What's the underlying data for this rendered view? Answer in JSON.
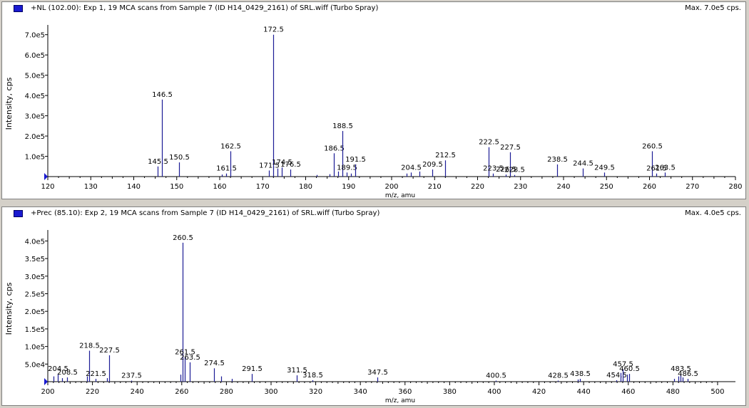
{
  "panels": [
    {
      "title": "+NL (102.00): Exp 1, 19 MCA scans from Sample 7 (ID H14_0429_2161) of SRL.wiff (Turbo Spray)",
      "max_label": "Max. 7.0e5 cps.",
      "legend_color": "#1a1ad0"
    },
    {
      "title": "+Prec (85.10): Exp 2, 19 MCA scans from Sample 7 (ID H14_0429_2161) of SRL.wiff (Turbo Spray)",
      "max_label": "Max. 4.0e5 cps.",
      "legend_color": "#1a1ad0"
    }
  ],
  "chart_data": [
    {
      "type": "bar",
      "title": "+NL (102.00): Exp 1, 19 MCA scans from Sample 7 (ID H14_0429_2161) of SRL.wiff (Turbo Spray)",
      "xlabel": "m/z, amu",
      "ylabel": "Intensity, cps",
      "xlim": [
        120,
        280
      ],
      "ylim": [
        0,
        720000
      ],
      "x_ticks": [
        120,
        130,
        140,
        150,
        160,
        170,
        180,
        190,
        200,
        210,
        220,
        230,
        240,
        250,
        260,
        270,
        280
      ],
      "y_ticks": [
        100000,
        200000,
        300000,
        400000,
        500000,
        600000,
        700000
      ],
      "y_tick_labels": [
        "1.0e5",
        "2.0e5",
        "3.0e5",
        "4.0e5",
        "5.0e5",
        "6.0e5",
        "7.0e5"
      ],
      "peak_color": "#1c1c96",
      "peaks": [
        {
          "x": 145.5,
          "y": 50000,
          "label": "145.5"
        },
        {
          "x": 146.5,
          "y": 380000,
          "label": "146.5"
        },
        {
          "x": 150.5,
          "y": 70000,
          "label": "150.5"
        },
        {
          "x": 160.5,
          "y": 10000,
          "label": ""
        },
        {
          "x": 161.5,
          "y": 15000,
          "label": "161.5"
        },
        {
          "x": 162.5,
          "y": 125000,
          "label": "162.5"
        },
        {
          "x": 171.5,
          "y": 30000,
          "label": "171.5"
        },
        {
          "x": 172.5,
          "y": 700000,
          "label": "172.5"
        },
        {
          "x": 173.5,
          "y": 40000,
          "label": ""
        },
        {
          "x": 174.5,
          "y": 45000,
          "label": "174.5"
        },
        {
          "x": 176.5,
          "y": 35000,
          "label": "176.5"
        },
        {
          "x": 182.5,
          "y": 8000,
          "label": ""
        },
        {
          "x": 185.5,
          "y": 12000,
          "label": ""
        },
        {
          "x": 186.5,
          "y": 115000,
          "label": "186.5"
        },
        {
          "x": 187.5,
          "y": 25000,
          "label": ""
        },
        {
          "x": 188.5,
          "y": 225000,
          "label": "188.5"
        },
        {
          "x": 189.5,
          "y": 20000,
          "label": "189.5"
        },
        {
          "x": 190.5,
          "y": 15000,
          "label": ""
        },
        {
          "x": 191.5,
          "y": 60000,
          "label": "191.5"
        },
        {
          "x": 203.5,
          "y": 15000,
          "label": ""
        },
        {
          "x": 204.5,
          "y": 20000,
          "label": "204.5"
        },
        {
          "x": 206.5,
          "y": 25000,
          "label": ""
        },
        {
          "x": 209.5,
          "y": 35000,
          "label": "209.5"
        },
        {
          "x": 212.5,
          "y": 80000,
          "label": "212.5"
        },
        {
          "x": 222.5,
          "y": 145000,
          "label": "222.5"
        },
        {
          "x": 223.5,
          "y": 15000,
          "label": "223.5"
        },
        {
          "x": 226.5,
          "y": 10000,
          "label": "226.5"
        },
        {
          "x": 227.5,
          "y": 120000,
          "label": "227.5"
        },
        {
          "x": 228.5,
          "y": 8000,
          "label": "228.5"
        },
        {
          "x": 238.5,
          "y": 60000,
          "label": "238.5"
        },
        {
          "x": 244.5,
          "y": 40000,
          "label": "244.5"
        },
        {
          "x": 249.5,
          "y": 20000,
          "label": "249.5"
        },
        {
          "x": 260.5,
          "y": 125000,
          "label": "260.5"
        },
        {
          "x": 261.5,
          "y": 15000,
          "label": "261.5"
        },
        {
          "x": 263.5,
          "y": 20000,
          "label": "263.5"
        }
      ]
    },
    {
      "type": "bar",
      "title": "+Prec (85.10): Exp 2, 19 MCA scans from Sample 7 (ID H14_0429_2161) of SRL.wiff (Turbo Spray)",
      "xlabel": "m/z, amu",
      "ylabel": "Intensity, cps",
      "xlim": [
        200,
        508
      ],
      "ylim": [
        0,
        415000
      ],
      "x_ticks": [
        200,
        220,
        240,
        260,
        280,
        300,
        320,
        340,
        360,
        380,
        400,
        420,
        440,
        460,
        480,
        500
      ],
      "y_ticks": [
        50000,
        100000,
        150000,
        200000,
        250000,
        300000,
        350000,
        400000
      ],
      "y_tick_labels": [
        "5.0e4",
        "1.0e5",
        "1.5e5",
        "2.0e5",
        "2.5e5",
        "3.0e5",
        "3.5e5",
        "4.0e5"
      ],
      "peak_color": "#1c1c96",
      "peaks": [
        {
          "x": 202.5,
          "y": 15000,
          "label": ""
        },
        {
          "x": 204.5,
          "y": 22000,
          "label": "204.5"
        },
        {
          "x": 206.5,
          "y": 10000,
          "label": ""
        },
        {
          "x": 208.5,
          "y": 12000,
          "label": "208.5"
        },
        {
          "x": 217.5,
          "y": 15000,
          "label": ""
        },
        {
          "x": 218.5,
          "y": 88000,
          "label": "218.5"
        },
        {
          "x": 221.5,
          "y": 8000,
          "label": "221.5"
        },
        {
          "x": 226.5,
          "y": 10000,
          "label": ""
        },
        {
          "x": 227.5,
          "y": 75000,
          "label": "227.5"
        },
        {
          "x": 237.5,
          "y": 3000,
          "label": "237.5"
        },
        {
          "x": 259.5,
          "y": 20000,
          "label": ""
        },
        {
          "x": 260.5,
          "y": 395000,
          "label": "260.5"
        },
        {
          "x": 261.5,
          "y": 70000,
          "label": "261.5"
        },
        {
          "x": 263.5,
          "y": 55000,
          "label": "263.5"
        },
        {
          "x": 274.5,
          "y": 38000,
          "label": "274.5"
        },
        {
          "x": 277.5,
          "y": 15000,
          "label": ""
        },
        {
          "x": 282.5,
          "y": 8000,
          "label": ""
        },
        {
          "x": 291.5,
          "y": 22000,
          "label": "291.5"
        },
        {
          "x": 311.5,
          "y": 18000,
          "label": "311.5"
        },
        {
          "x": 318.5,
          "y": 4000,
          "label": "318.5"
        },
        {
          "x": 347.5,
          "y": 12000,
          "label": "347.5"
        },
        {
          "x": 400.5,
          "y": 3000,
          "label": "400.5"
        },
        {
          "x": 428.5,
          "y": 3000,
          "label": "428.5"
        },
        {
          "x": 437.5,
          "y": 6000,
          "label": ""
        },
        {
          "x": 438.5,
          "y": 8000,
          "label": "438.5"
        },
        {
          "x": 454.5,
          "y": 4000,
          "label": "454.5"
        },
        {
          "x": 456.5,
          "y": 25000,
          "label": ""
        },
        {
          "x": 457.5,
          "y": 35000,
          "label": "457.5"
        },
        {
          "x": 459.5,
          "y": 20000,
          "label": ""
        },
        {
          "x": 460.5,
          "y": 22000,
          "label": "460.5"
        },
        {
          "x": 480.5,
          "y": 8000,
          "label": ""
        },
        {
          "x": 482.5,
          "y": 15000,
          "label": ""
        },
        {
          "x": 483.5,
          "y": 22000,
          "label": "483.5"
        },
        {
          "x": 484.5,
          "y": 12000,
          "label": ""
        },
        {
          "x": 486.5,
          "y": 8000,
          "label": "486.5"
        }
      ]
    }
  ]
}
